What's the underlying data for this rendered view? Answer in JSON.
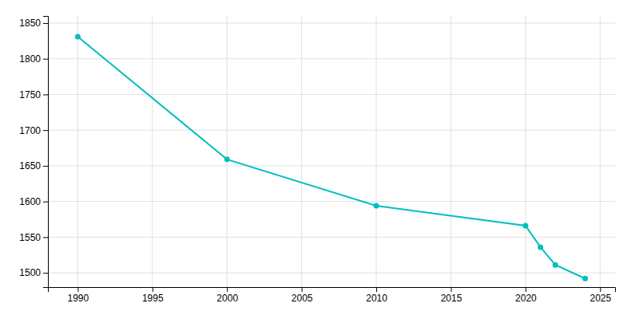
{
  "chart_data": {
    "type": "line",
    "x": [
      1990,
      2000,
      2010,
      2020,
      2021,
      2022,
      2024
    ],
    "values": [
      1831,
      1659,
      1594,
      1566,
      1536,
      1511,
      1492
    ],
    "color": "#00BFBF",
    "marker": "circle",
    "xlim": [
      1988,
      2026
    ],
    "ylim": [
      1480,
      1860
    ],
    "xticks": [
      1990,
      1995,
      2000,
      2005,
      2010,
      2015,
      2020,
      2025
    ],
    "yticks": [
      1500,
      1550,
      1600,
      1650,
      1700,
      1750,
      1800,
      1850
    ],
    "grid": true
  }
}
